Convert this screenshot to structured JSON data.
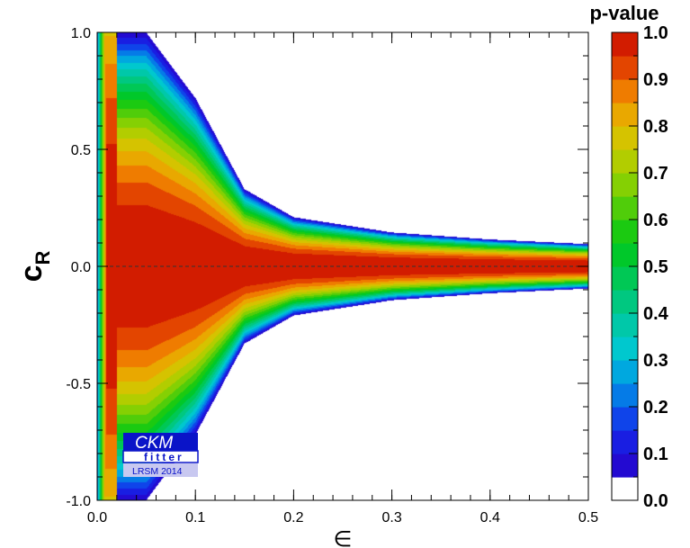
{
  "chart_data": {
    "type": "heatmap",
    "xlabel": "∈",
    "ylabel_main": "c",
    "ylabel_sub": "R",
    "xlim": [
      0.0,
      0.5
    ],
    "ylim": [
      -1.0,
      1.0
    ],
    "x_ticks": [
      "0.0",
      "0.1",
      "0.2",
      "0.3",
      "0.4",
      "0.5"
    ],
    "y_ticks": [
      "-1.0",
      "-0.5",
      "0.0",
      "0.5",
      "1.0"
    ],
    "colorbar": {
      "title": "p-value",
      "range": [
        0.0,
        1.0
      ],
      "ticks": [
        "0.0",
        "0.1",
        "0.2",
        "0.3",
        "0.4",
        "0.5",
        "0.6",
        "0.7",
        "0.8",
        "0.9",
        "1.0"
      ],
      "levels": 20,
      "white_below": 0.05
    },
    "reference_line": {
      "y": 0.0,
      "style": "dashed"
    },
    "field_description": "p-value peaks along c_R = 0 and falls off with |c_R|; allowed band narrows as ε increases",
    "band_edge_p05": [
      {
        "x": 0.02,
        "c": 1.0
      },
      {
        "x": 0.05,
        "c": 1.0
      },
      {
        "x": 0.1,
        "c": 0.72
      },
      {
        "x": 0.15,
        "c": 0.33
      },
      {
        "x": 0.2,
        "c": 0.21
      },
      {
        "x": 0.3,
        "c": 0.145
      },
      {
        "x": 0.4,
        "c": 0.115
      },
      {
        "x": 0.5,
        "c": 0.095
      }
    ]
  },
  "logo": {
    "line1": "CKM",
    "line2": "fitter",
    "line3": "LRSM 2014",
    "colors": {
      "dark": "#0a14c8",
      "light": "#c8c8f0"
    }
  }
}
